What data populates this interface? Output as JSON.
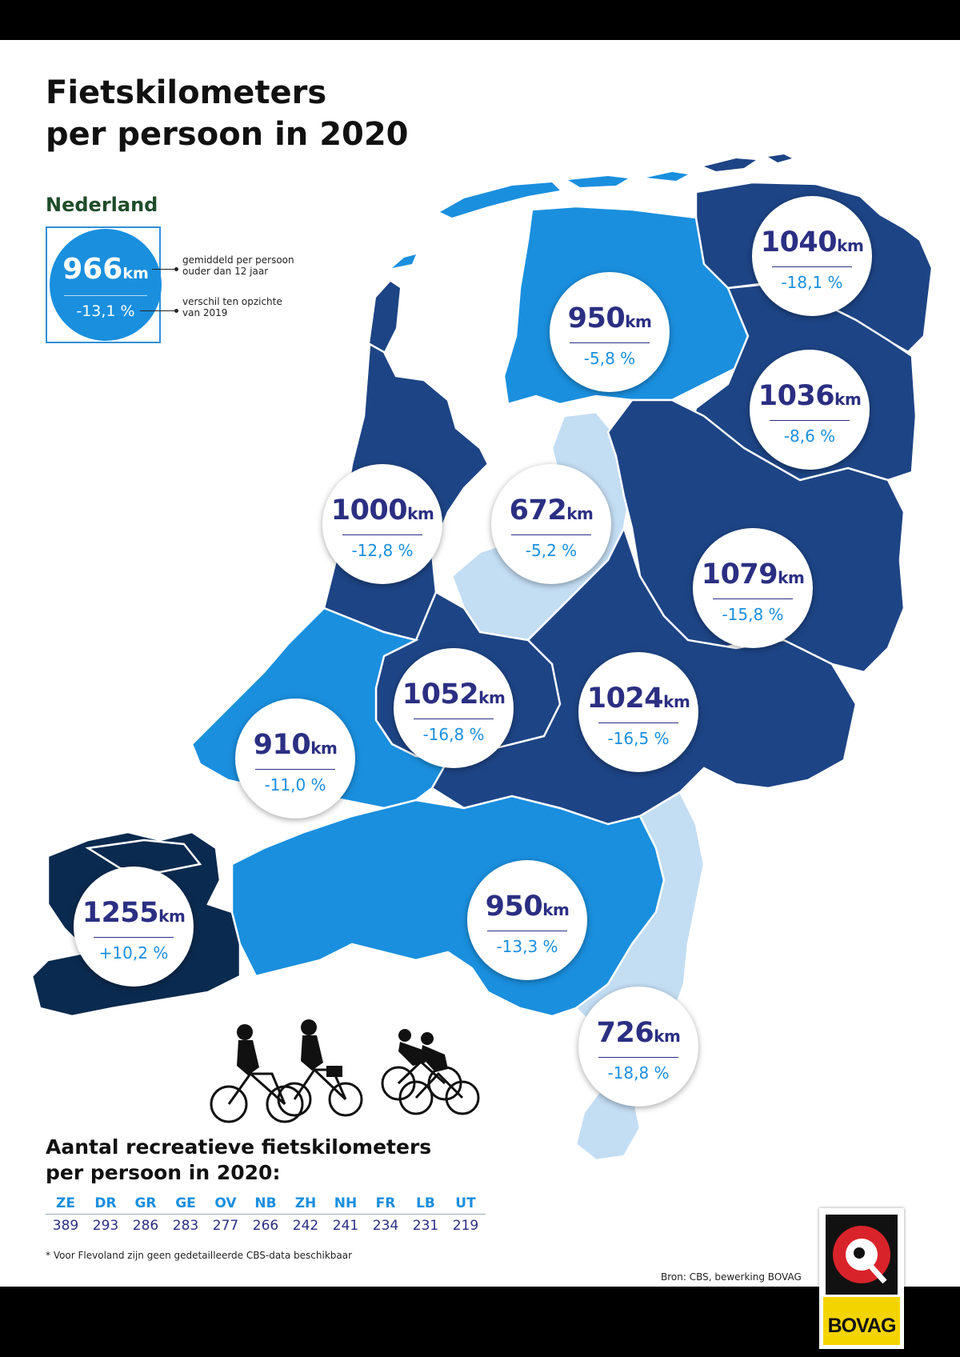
{
  "title_line1": "Fietskilometers",
  "title_line2": "per persoon in 2020",
  "national": {
    "label": "Nederland",
    "value": "966",
    "unit": "km",
    "change": "-13,1 %",
    "note_value_1": "gemiddeld per persoon",
    "note_value_2": "ouder dan 12 jaar",
    "note_change_1": "verschil ten opzichte",
    "note_change_2": "van 2019"
  },
  "colors": {
    "dark_navy": "#0b2a4f",
    "navy": "#1d4485",
    "medium_blue": "#1a8fde",
    "light_blue": "#c3ddf3",
    "value_text": "#2b2f82",
    "change_text": "#1a8fde"
  },
  "provinces": [
    {
      "name": "Groningen",
      "value": "1040",
      "unit": "km",
      "change": "-18,1 %",
      "fill": "#1d4485"
    },
    {
      "name": "Friesland",
      "value": "950",
      "unit": "km",
      "change": "-5,8 %",
      "fill": "#1a8fde"
    },
    {
      "name": "Drenthe",
      "value": "1036",
      "unit": "km",
      "change": "-8,6 %",
      "fill": "#1d4485"
    },
    {
      "name": "Noord-Holland",
      "value": "1000",
      "unit": "km",
      "change": "-12,8 %",
      "fill": "#1d4485"
    },
    {
      "name": "Flevoland",
      "value": "672",
      "unit": "km",
      "change": "-5,2 %",
      "fill": "#c3ddf3"
    },
    {
      "name": "Overijssel",
      "value": "1079",
      "unit": "km",
      "change": "-15,8 %",
      "fill": "#1d4485"
    },
    {
      "name": "Utrecht",
      "value": "1052",
      "unit": "km",
      "change": "-16,8 %",
      "fill": "#1d4485"
    },
    {
      "name": "Gelderland",
      "value": "1024",
      "unit": "km",
      "change": "-16,5 %",
      "fill": "#1d4485"
    },
    {
      "name": "Zuid-Holland",
      "value": "910",
      "unit": "km",
      "change": "-11,0 %",
      "fill": "#1a8fde"
    },
    {
      "name": "Zeeland",
      "value": "1255",
      "unit": "km",
      "change": "+10,2 %",
      "fill": "#0b2a4f"
    },
    {
      "name": "Noord-Brabant",
      "value": "950",
      "unit": "km",
      "change": "-13,3 %",
      "fill": "#1a8fde"
    },
    {
      "name": "Limburg",
      "value": "726",
      "unit": "km",
      "change": "-18,8 %",
      "fill": "#c3ddf3"
    }
  ],
  "recreational": {
    "title_line1": "Aantal recreatieve fietskilometers",
    "title_line2": "per persoon in 2020:",
    "codes": [
      "ZE",
      "DR",
      "GR",
      "GE",
      "OV",
      "NB",
      "ZH",
      "NH",
      "FR",
      "LB",
      "UT"
    ],
    "values": [
      "389",
      "293",
      "286",
      "283",
      "277",
      "266",
      "242",
      "241",
      "234",
      "231",
      "219"
    ]
  },
  "footnote": "* Voor Flevoland zijn geen gedetailleerde CBS-data beschikbaar",
  "source": "Bron: CBS, bewerking BOVAG",
  "logo_text": "BOVAG"
}
